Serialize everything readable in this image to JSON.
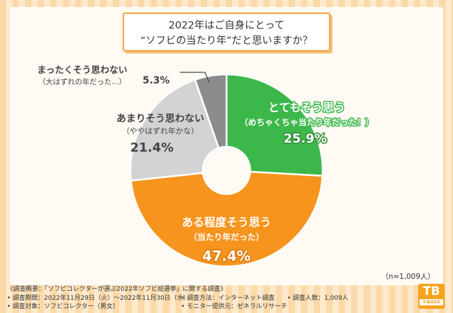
{
  "title": {
    "line1": "2022年はご自身にとって",
    "line2": "“ソフビの当たり年”だと思いますか？"
  },
  "chart_data": {
    "type": "pie",
    "variant": "donut",
    "start": "12 o'clock, clockwise",
    "slices": [
      {
        "label": "とてもそう思う",
        "sublabel": "（めちゃくちゃ当たり年だった！）",
        "value": 25.9,
        "value_label": "25.9%",
        "color": "#3cb84a"
      },
      {
        "label": "ある程度そう思う",
        "sublabel": "（当たり年だった）",
        "value": 47.4,
        "value_label": "47.4%",
        "color": "#f7941d"
      },
      {
        "label": "あまりそう思わない",
        "sublabel": "（ややはずれ年かな）",
        "value": 21.4,
        "value_label": "21.4%",
        "color": "#d3d3d3"
      },
      {
        "label": "まったくそう思わない",
        "sublabel": "（大はずれの年だった…）",
        "value": 5.3,
        "value_label": "5.3%",
        "color": "#8c8c8c"
      }
    ]
  },
  "n_note": "（n=1,009人）",
  "survey": {
    "overview": "《調査概要：「ソフビコレクターが選ぶ2022年ソフビ総選挙」に関する調査》",
    "period": "• 調査期間：2022年11月29日（火）～2022年11月30日（水）",
    "method": "• 調査方法：インターネット調査",
    "count": "• 調査人数：1,009人",
    "target": "• 調査対象：ソフビコレクター（男女）",
    "provider": "• モニター提供元：ゼネラルリサーチ"
  },
  "logo": {
    "mark": "TB",
    "name": "T-BASE"
  }
}
